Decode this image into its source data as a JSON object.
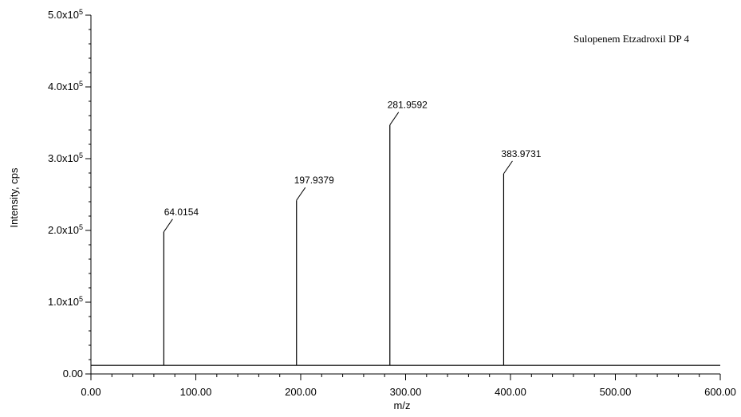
{
  "chart_data": {
    "type": "bar",
    "title": "Sulopenem Etzadroxil DP 4",
    "xlabel": "m/z",
    "ylabel": "Intensity, cps",
    "xlim": [
      0,
      600
    ],
    "ylim": [
      0,
      500000
    ],
    "x_ticks": [
      {
        "value": 0,
        "label": "0.00"
      },
      {
        "value": 100,
        "label": "100.00"
      },
      {
        "value": 200,
        "label": "200.00"
      },
      {
        "value": 300,
        "label": "300.00"
      },
      {
        "value": 400,
        "label": "400.00"
      },
      {
        "value": 500,
        "label": "500.00"
      },
      {
        "value": 600,
        "label": "600.00"
      }
    ],
    "y_ticks": [
      {
        "value": 0,
        "label": "0.00",
        "mant": "",
        "exp": ""
      },
      {
        "value": 100000,
        "label": "1.0x10^5",
        "mant": "1.0x10",
        "exp": "5"
      },
      {
        "value": 200000,
        "label": "2.0x10^5",
        "mant": "2.0x10",
        "exp": "5"
      },
      {
        "value": 300000,
        "label": "3.0x10^5",
        "mant": "3.0x10",
        "exp": "5"
      },
      {
        "value": 400000,
        "label": "4.0x10^5",
        "mant": "4.0x10",
        "exp": "5"
      },
      {
        "value": 500000,
        "label": "5.0x10^5",
        "mant": "5.0x10",
        "exp": "5"
      }
    ],
    "baseline": 12000,
    "peaks": [
      {
        "mz": 69.5,
        "intensity": 198000,
        "label": "64.0154"
      },
      {
        "mz": 196.0,
        "intensity": 242000,
        "label": "197.9379"
      },
      {
        "mz": 285.0,
        "intensity": 347000,
        "label": "281.9592"
      },
      {
        "mz": 393.5,
        "intensity": 279000,
        "label": "383.9731"
      }
    ],
    "legend": "none",
    "grid": false
  }
}
